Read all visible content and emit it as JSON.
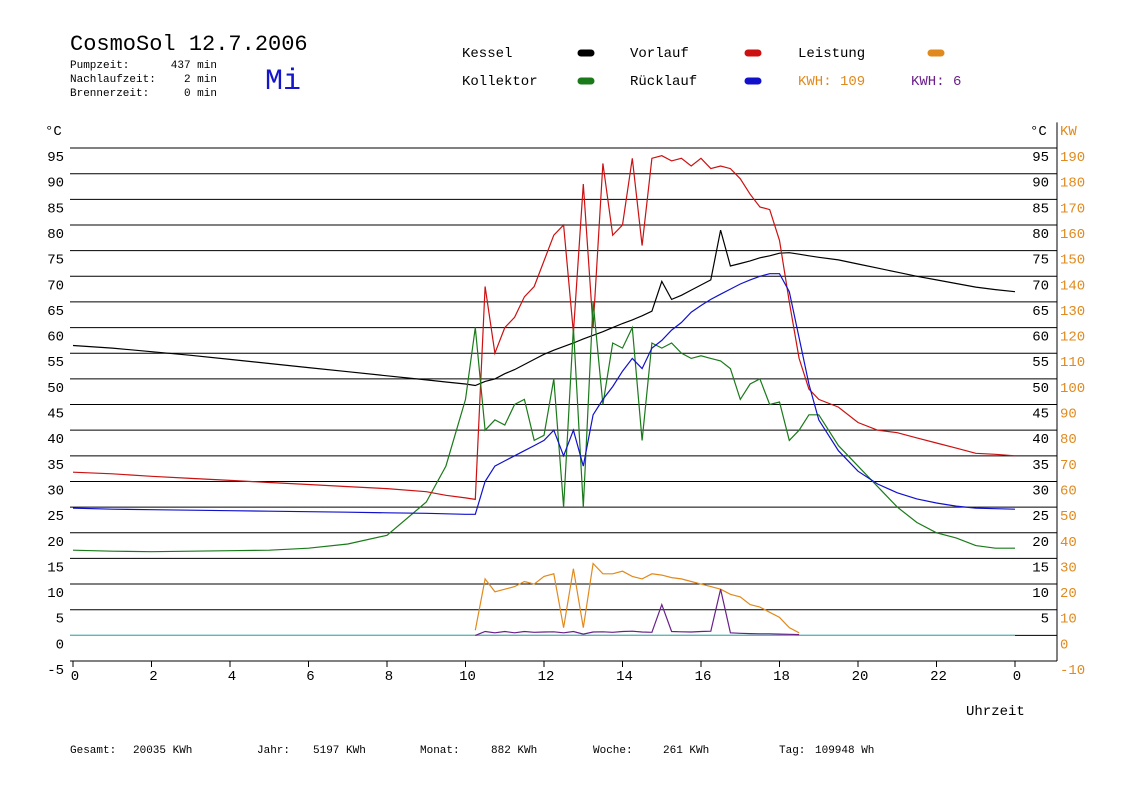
{
  "header": {
    "title": "CosmoSol 12.7.2006",
    "day": "Mi",
    "stats": [
      {
        "label": "Pumpzeit:",
        "value": "437 min"
      },
      {
        "label": "Nachlaufzeit:",
        "value": "2 min"
      },
      {
        "label": "Brennerzeit:",
        "value": "0 min"
      }
    ]
  },
  "chart_data": {
    "type": "line",
    "y_label": "°C",
    "y_label_right": "°C",
    "y2_label": "KW",
    "y2_color": "#e08a1e",
    "x_label": "Uhrzeit",
    "x": [
      0,
      1,
      2,
      3,
      4,
      5,
      6,
      7,
      8,
      9,
      9.5,
      10,
      10.25,
      10.5,
      10.75,
      11,
      11.25,
      11.5,
      11.75,
      12,
      12.25,
      12.5,
      12.75,
      13,
      13.25,
      13.5,
      13.75,
      14,
      14.25,
      14.5,
      14.75,
      15,
      15.25,
      15.5,
      15.75,
      16,
      16.25,
      16.5,
      16.75,
      17,
      17.25,
      17.5,
      17.75,
      18,
      18.25,
      18.5,
      18.75,
      19,
      19.5,
      20,
      20.5,
      21,
      21.5,
      22,
      22.5,
      23,
      23.5,
      24
    ],
    "series": [
      {
        "name": "Kessel",
        "color": "#000000",
        "values": [
          56.5,
          56,
          55.3,
          54.6,
          53.8,
          53,
          52.2,
          51.4,
          50.6,
          49.8,
          49.4,
          49,
          48.7,
          49.5,
          50,
          51,
          51.8,
          52.8,
          53.8,
          54.8,
          55.6,
          56.3,
          57,
          57.8,
          58.5,
          59.2,
          60,
          60.8,
          61.5,
          62.3,
          63.2,
          69,
          65.5,
          66.3,
          67.3,
          68.3,
          69.3,
          79,
          72,
          72.5,
          73,
          73.6,
          74,
          74.5,
          74.6,
          74.3,
          74,
          73.7,
          73.2,
          72.4,
          71.6,
          70.8,
          70,
          69.3,
          68.6,
          67.9,
          67.4,
          67
        ]
      },
      {
        "name": "Vorlauf",
        "color": "#cc1111",
        "values": [
          31.8,
          31.5,
          31,
          30.6,
          30.2,
          29.8,
          29.4,
          29,
          28.6,
          28,
          27.3,
          26.8,
          26.5,
          68,
          55,
          60,
          62,
          66,
          68,
          73,
          78,
          80,
          59,
          88,
          60,
          92,
          78,
          80,
          93,
          76,
          93,
          93.5,
          92.5,
          93,
          91.5,
          93,
          91,
          91.5,
          91,
          89,
          86,
          83.5,
          83,
          77,
          65,
          54,
          48,
          46,
          44.5,
          41.5,
          40,
          39.5,
          38.5,
          37.5,
          36.5,
          35.5,
          35.3,
          35
        ]
      },
      {
        "name": "Leistung",
        "color": "#e08a1e",
        "axis": "y2",
        "values": [
          null,
          null,
          null,
          null,
          null,
          null,
          null,
          null,
          null,
          null,
          null,
          null,
          2,
          22,
          17,
          18,
          19,
          21,
          20,
          23,
          24,
          3,
          26,
          3,
          28,
          24,
          24,
          25,
          23,
          22,
          24,
          23.5,
          22.5,
          22,
          21,
          20,
          19,
          18,
          16,
          15,
          12,
          11,
          9,
          7,
          3,
          1,
          null,
          null,
          null,
          null,
          null,
          null,
          null,
          null,
          null,
          null,
          null,
          null
        ]
      },
      {
        "name": "Kollektor",
        "color": "#1a7a1a",
        "values": [
          16.6,
          16.4,
          16.3,
          16.4,
          16.5,
          16.6,
          17,
          17.8,
          19.5,
          26,
          33,
          46,
          60,
          40,
          42,
          41,
          45,
          46,
          38,
          39,
          50,
          25,
          60,
          25,
          65,
          45,
          57,
          56,
          60,
          38,
          57,
          56,
          57,
          55,
          54,
          54.5,
          54,
          53.5,
          52,
          46,
          49,
          50,
          45,
          45.5,
          38,
          40,
          43,
          43,
          37,
          33,
          29,
          25,
          22,
          20,
          19,
          17.5,
          17,
          17
        ]
      },
      {
        "name": "Rücklauf",
        "color": "#1111cc",
        "values": [
          24.8,
          24.6,
          24.5,
          24.4,
          24.3,
          24.2,
          24.1,
          24,
          23.9,
          23.8,
          23.7,
          23.6,
          23.6,
          30,
          33,
          34,
          35,
          36,
          37,
          38,
          40,
          35,
          40,
          33,
          43,
          46,
          48.5,
          51.5,
          54,
          52,
          56,
          57.5,
          59.5,
          61,
          63,
          64.3,
          65.5,
          66.5,
          67.5,
          68.5,
          69.3,
          70,
          70.5,
          70.5,
          67,
          58,
          49,
          42,
          36,
          32,
          29.5,
          27.8,
          26.6,
          25.8,
          25.2,
          24.8,
          24.7,
          24.6
        ]
      },
      {
        "color": "#6a1f8a",
        "axis": "y2",
        "values": [
          null,
          null,
          null,
          null,
          null,
          null,
          null,
          null,
          null,
          null,
          null,
          null,
          0,
          1.5,
          1,
          1.5,
          1,
          1.5,
          1.2,
          1.3,
          1.4,
          1,
          1.5,
          0.5,
          1.3,
          1.4,
          1.2,
          1.5,
          1.6,
          1.3,
          1.2,
          12,
          1.5,
          1.4,
          1.3,
          1.5,
          1.6,
          18,
          1,
          0.8,
          0.7,
          0.6,
          0.6,
          0.5,
          0.4,
          0.3,
          null,
          null,
          null,
          null,
          null,
          null,
          null,
          null,
          null,
          null,
          null,
          null
        ]
      }
    ],
    "energy": [
      {
        "text": "KWH: 109",
        "color": "#e08a1e"
      },
      {
        "text": "KWH: 6",
        "color": "#6a1f8a"
      }
    ],
    "xlim": [
      0,
      25.07
    ],
    "xticks": [
      0,
      2,
      4,
      6,
      8,
      10,
      12,
      14,
      16,
      18,
      20,
      22,
      {
        "value": 24,
        "label": "0"
      }
    ],
    "ylim": [
      -5,
      100
    ],
    "yticks": [
      -5,
      0,
      5,
      10,
      15,
      20,
      25,
      30,
      35,
      40,
      45,
      50,
      55,
      60,
      65,
      70,
      75,
      80,
      85,
      90,
      95
    ],
    "yticks_right": [
      5,
      10,
      15,
      20,
      25,
      30,
      35,
      40,
      45,
      50,
      55,
      60,
      65,
      70,
      75,
      80,
      85,
      90,
      95
    ],
    "y2lim": [
      -10,
      200
    ],
    "y2ticks": [
      -10,
      0,
      10,
      20,
      30,
      40,
      50,
      60,
      70,
      80,
      90,
      100,
      110,
      120,
      130,
      140,
      150,
      160,
      170,
      180,
      190
    ],
    "grid": true
  },
  "footer": [
    {
      "label": "Gesamt:",
      "value": "20035 KWh"
    },
    {
      "label": "Jahr:",
      "value": "5197 KWh"
    },
    {
      "label": "Monat:",
      "value": "882 KWh"
    },
    {
      "label": "Woche:",
      "value": "261 KWh"
    },
    {
      "label": "Tag:",
      "value": "109948 Wh"
    }
  ]
}
